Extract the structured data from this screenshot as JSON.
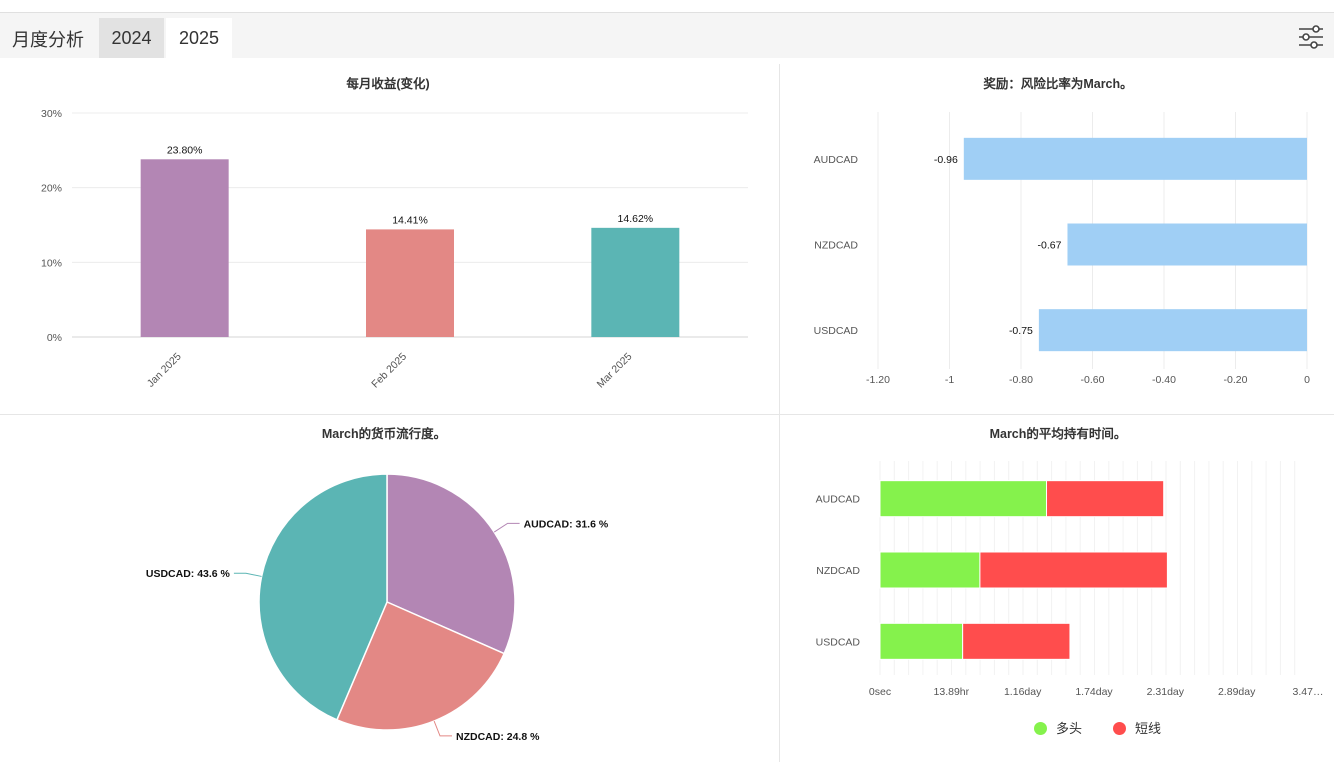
{
  "header": {
    "title": "月度分析",
    "tabs": [
      {
        "label": "2024",
        "active": false
      },
      {
        "label": "2025",
        "active": true
      }
    ],
    "settings_icon": "sliders-icon"
  },
  "colors": {
    "purple": "#b386b4",
    "salmon": "#e38885",
    "teal": "#5bb5b4",
    "lightblue": "#a0cff5",
    "green": "#85f24c",
    "red": "#ff4d4d"
  },
  "chart_data": [
    {
      "type": "bar",
      "title": "每月收益(变化)",
      "categories": [
        "Jan 2025",
        "Feb 2025",
        "Mar 2025"
      ],
      "values": [
        23.8,
        14.41,
        14.62
      ],
      "data_labels": [
        "23.80%",
        "14.41%",
        "14.62%"
      ],
      "yticks": [
        "0%",
        "10%",
        "20%",
        "30%"
      ],
      "ylim": [
        0,
        30
      ],
      "colors": [
        "#b386b4",
        "#e38885",
        "#5bb5b4"
      ],
      "grid": true
    },
    {
      "type": "bar",
      "orientation": "horizontal",
      "title": "奖励：风险比率为March。",
      "categories": [
        "AUDCAD",
        "NZDCAD",
        "USDCAD"
      ],
      "values": [
        -0.96,
        -0.67,
        -0.75
      ],
      "data_labels": [
        "-0.96",
        "-0.67",
        "-0.75"
      ],
      "xticks": [
        "-1.20",
        "-1",
        "-0.80",
        "-0.60",
        "-0.40",
        "-0.20",
        "0"
      ],
      "xlim": [
        -1.2,
        0
      ],
      "color": "#a0cff5",
      "grid": true
    },
    {
      "type": "pie",
      "title": "March的货币流行度。",
      "slices": [
        {
          "label": "AUDCAD: 31.6 %",
          "value": 31.6,
          "color": "#b386b4"
        },
        {
          "label": "NZDCAD: 24.8 %",
          "value": 24.8,
          "color": "#e38885"
        },
        {
          "label": "USDCAD: 43.6 %",
          "value": 43.6,
          "color": "#5bb5b4"
        }
      ]
    },
    {
      "type": "bar",
      "orientation": "horizontal",
      "stacked": true,
      "title": "March的平均持有时间。",
      "categories": [
        "AUDCAD",
        "NZDCAD",
        "USDCAD"
      ],
      "xticks": [
        "0sec",
        "13.89hr",
        "1.16day",
        "1.74day",
        "2.31day",
        "2.89day",
        "3.47…"
      ],
      "xlim_days": [
        0,
        3.47
      ],
      "series": [
        {
          "name": "多头",
          "color": "#85f24c",
          "values_days": [
            1.35,
            0.81,
            0.67
          ]
        },
        {
          "name": "短线",
          "color": "#ff4d4d",
          "values_days": [
            0.95,
            1.52,
            0.87
          ]
        }
      ],
      "legend_position": "bottom",
      "grid": true
    }
  ]
}
